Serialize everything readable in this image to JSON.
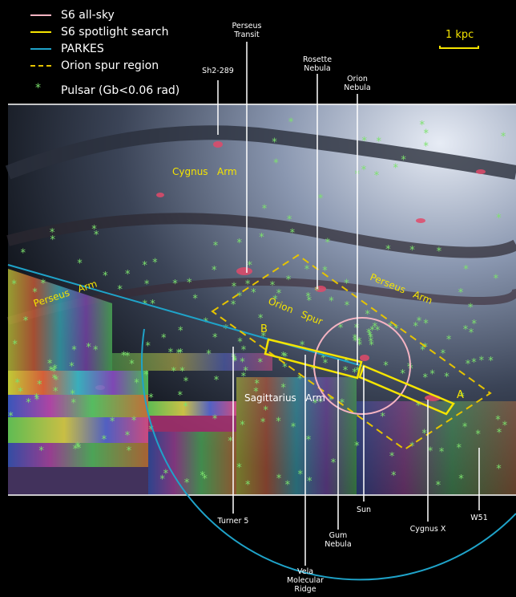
{
  "legend": [
    {
      "label": "S6 all-sky",
      "color": "#f4b3c2",
      "style": "solid"
    },
    {
      "label": "S6 spotlight search",
      "color": "#f5e400",
      "style": "solid"
    },
    {
      "label": "PARKES",
      "color": "#1fa3c9",
      "style": "solid"
    },
    {
      "label": "Orion spur region",
      "color": "#e5c300",
      "style": "dashed"
    },
    {
      "label": "Pulsar (Gb<0.06 rad)",
      "color": "#7de36d",
      "style": "star"
    }
  ],
  "scale_bar": {
    "label": "1 kpc",
    "color": "#f5e400"
  },
  "pulsar_glyph": "*",
  "colors": {
    "pulsar": "#7de36d",
    "label_line": "#ffffff",
    "panel_border": "#ffffff",
    "arm_text": "#f5e400"
  },
  "top_labels": {
    "sh2289": "Sh2-289",
    "perseus_transit": [
      "Perseus",
      "Transit"
    ],
    "rosette": [
      "Rosette",
      "Nebula"
    ],
    "orion_nebula": [
      "Orion",
      "Nebula"
    ]
  },
  "bottom_labels": {
    "turner5": "Turner 5",
    "vela": [
      "Vela",
      "Molecular",
      "Ridge"
    ],
    "gum": [
      "Gum",
      "Nebula"
    ],
    "sun": "Sun",
    "cygnus_x": "Cygnus X",
    "w51": "W51"
  },
  "arms": {
    "cygnus": [
      "Cygnus",
      "Arm"
    ],
    "perseus_left": [
      "Perseus",
      "Arm"
    ],
    "orion": [
      "Orion",
      "Spur"
    ],
    "perseus_right": [
      "Perseus",
      "Arm"
    ],
    "sagittarius": [
      "Sagittarius",
      "Arm"
    ]
  },
  "spotlight_markers": {
    "a": "A",
    "b": "B"
  }
}
